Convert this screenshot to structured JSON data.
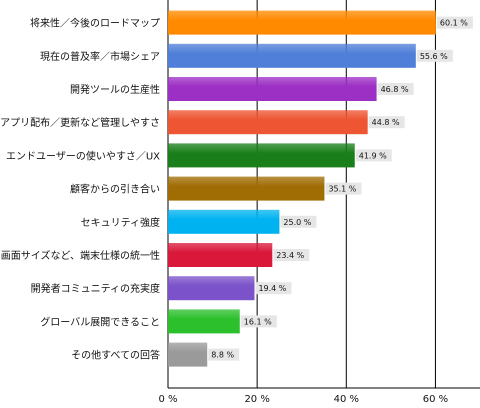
{
  "chart_data": {
    "type": "bar",
    "orientation": "horizontal",
    "categories": [
      "将来性／今後のロードマップ",
      "現在の普及率／市場シェア",
      "開発ツールの生産性",
      "アプリ配布／更新など管理しやすさ",
      "エンドユーザーの使いやすさ／UX",
      "顧客からの引き合い",
      "セキュリティ強度",
      "画面サイズなど、端末仕様の統一性",
      "開発者コミュニティの充実度",
      "グローバル展開できること",
      "その他すべての回答"
    ],
    "values": [
      60.1,
      55.6,
      46.8,
      44.8,
      41.9,
      35.1,
      25.0,
      23.4,
      19.4,
      16.1,
      8.8
    ],
    "value_labels": [
      "60.1 %",
      "55.6 %",
      "46.8 %",
      "44.8 %",
      "41.9 %",
      "35.1 %",
      "25.0 %",
      "23.4 %",
      "19.4 %",
      "16.1 %",
      "8.8 %"
    ],
    "colors": [
      "#ff8a00",
      "#4f7fd8",
      "#9c2fc4",
      "#ee5533",
      "#1a7f1a",
      "#a06d05",
      "#00b3f0",
      "#d9183a",
      "#7b52c9",
      "#2cc02c",
      "#9a9a9a"
    ],
    "xlim": [
      0,
      70
    ],
    "xticks": [
      0,
      20,
      40,
      60
    ],
    "xtick_labels": [
      "0 %",
      "20 %",
      "40 %",
      "60 %"
    ],
    "grid": true,
    "title": "",
    "xlabel": "",
    "ylabel": ""
  }
}
